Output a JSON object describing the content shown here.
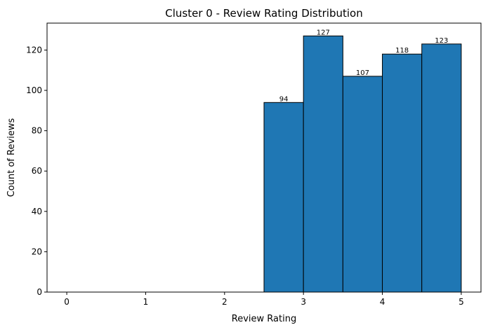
{
  "chart_data": {
    "type": "bar",
    "title": "Cluster 0 - Review Rating Distribution",
    "xlabel": "Review Rating",
    "ylabel": "Count of Reviews",
    "xlim": [
      -0.25,
      5.25
    ],
    "ylim": [
      0,
      133.35
    ],
    "x_ticks": [
      0,
      1,
      2,
      3,
      4,
      5
    ],
    "y_ticks": [
      0,
      20,
      40,
      60,
      80,
      100,
      120
    ],
    "grid": false,
    "bar_color": "#1f77b4",
    "edge_color": "#000000",
    "bins": [
      {
        "start": 0.0,
        "end": 0.5,
        "value": 0
      },
      {
        "start": 0.5,
        "end": 1.0,
        "value": 0
      },
      {
        "start": 1.0,
        "end": 1.5,
        "value": 0
      },
      {
        "start": 1.5,
        "end": 2.0,
        "value": 0
      },
      {
        "start": 2.0,
        "end": 2.5,
        "value": 0
      },
      {
        "start": 2.5,
        "end": 3.0,
        "value": 94
      },
      {
        "start": 3.0,
        "end": 3.5,
        "value": 127
      },
      {
        "start": 3.5,
        "end": 4.0,
        "value": 107
      },
      {
        "start": 4.0,
        "end": 4.5,
        "value": 118
      },
      {
        "start": 4.5,
        "end": 5.0,
        "value": 123
      }
    ]
  }
}
